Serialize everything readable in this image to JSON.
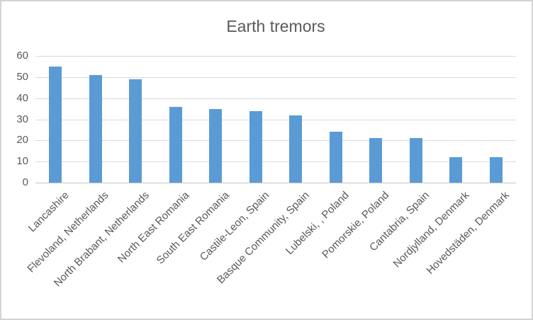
{
  "chart": {
    "title": "Earth tremors",
    "colors": {
      "bar": "#5B9BD5",
      "gridline": "#D9D9D9",
      "axis_line": "#C6C6C6",
      "text": "#595959",
      "frame_border": "#D3D3D3",
      "background": "#FFFFFF"
    }
  },
  "chart_data": {
    "type": "bar",
    "title": "Earth tremors",
    "categories": [
      "Lancashire",
      "Flevoland, Netherlands",
      "North Brabant, Netherlands",
      "North East Romania",
      "South East Romania",
      "Castile-Leon, Spain",
      "Basque Community, Spain",
      "Lubelski, , Poland",
      "Pomorskie, Poland",
      "Cantabria, Spain",
      "Nordjylland, Denmark",
      "Hovedstäden, Denmark"
    ],
    "values": [
      55,
      51,
      49,
      36,
      35,
      34,
      32,
      24,
      21,
      21,
      12,
      12
    ],
    "xlabel": "",
    "ylabel": "",
    "ylim": [
      0,
      60
    ],
    "yticks": [
      0,
      10,
      20,
      30,
      40,
      50,
      60
    ],
    "ytick_labels": [
      "0",
      "10",
      "20",
      "30",
      "40",
      "50",
      "60"
    ],
    "grid": true,
    "legend": false,
    "bar_color": "#5B9BD5"
  }
}
